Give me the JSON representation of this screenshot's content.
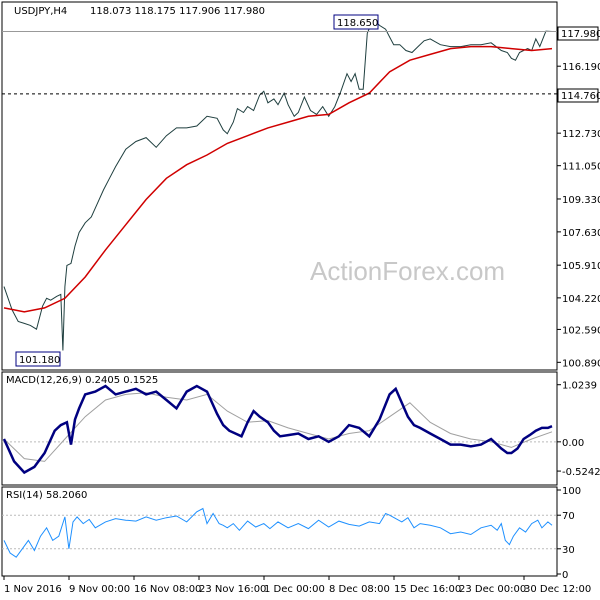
{
  "colors": {
    "candle": "#1f3f3f",
    "ma": "#d00000",
    "macd": "#000080",
    "signal": "#a0a0a0",
    "rsi": "#1e90ff",
    "level": "#000000",
    "grid": "#bbbbbb"
  },
  "watermark": "ActionForex.com",
  "chart_data": [
    {
      "type": "line",
      "panel": "price",
      "header": "USDJPY,H4",
      "ohlc_text": "118.073 118.175 117.906 117.980",
      "y_ticks": [
        "117.980",
        "116.190",
        "114.760",
        "112.730",
        "111.050",
        "109.330",
        "107.630",
        "105.910",
        "104.220",
        "102.590",
        "100.890"
      ],
      "y_tick_values": [
        117.98,
        116.19,
        114.76,
        112.73,
        111.05,
        109.33,
        107.63,
        105.91,
        104.22,
        102.59,
        100.89
      ],
      "ylim": [
        100.7,
        119.3
      ],
      "labels": {
        "high": "118.650",
        "low": "101.180",
        "current": "117.980",
        "level": "114.760"
      },
      "level_value": 114.76,
      "current_value": 117.98,
      "series": [
        {
          "name": "price",
          "x": [
            0,
            8,
            14,
            20,
            26,
            32,
            38,
            42,
            46,
            52,
            56,
            58,
            60,
            62,
            66,
            70,
            74,
            80,
            86,
            92,
            98,
            104,
            110,
            120,
            130,
            140,
            150,
            160,
            170,
            180,
            190,
            200,
            210,
            216,
            220,
            226,
            230,
            236,
            240,
            246,
            252,
            256,
            260,
            266,
            270,
            276,
            280,
            286,
            290,
            296,
            302,
            308,
            314,
            320,
            326,
            332,
            338,
            342,
            346,
            350,
            354,
            358,
            364,
            370,
            376,
            380,
            384,
            390,
            396,
            402,
            408,
            414,
            420,
            430,
            440,
            450,
            460,
            470,
            480,
            490,
            496,
            500,
            504,
            508,
            512,
            516,
            520,
            524,
            528,
            534,
            540
          ],
          "y": [
            104.8,
            103.6,
            103.0,
            102.9,
            102.8,
            102.6,
            103.8,
            104.2,
            104.1,
            104.3,
            104.4,
            101.5,
            104.8,
            105.9,
            106.0,
            106.9,
            107.6,
            108.1,
            108.4,
            109.1,
            109.8,
            110.4,
            111.0,
            111.9,
            112.3,
            112.5,
            112.0,
            112.6,
            113.0,
            113.0,
            113.1,
            113.6,
            113.5,
            112.9,
            112.7,
            113.3,
            114.0,
            113.8,
            114.1,
            113.9,
            114.7,
            114.9,
            114.3,
            114.5,
            114.2,
            114.8,
            114.2,
            113.6,
            113.8,
            114.6,
            113.9,
            113.7,
            114.1,
            113.6,
            114.1,
            114.9,
            115.8,
            115.4,
            115.8,
            115.0,
            115.0,
            117.9,
            118.6,
            118.3,
            118.1,
            117.7,
            117.3,
            117.3,
            117.0,
            116.9,
            117.2,
            117.5,
            117.6,
            117.3,
            117.2,
            117.2,
            117.3,
            117.3,
            117.4,
            117.0,
            116.9,
            116.6,
            116.5,
            116.9,
            117.0,
            117.1,
            117.0,
            117.6,
            117.2,
            118.0,
            117.98
          ]
        },
        {
          "name": "ma",
          "x": [
            0,
            20,
            40,
            60,
            80,
            100,
            120,
            140,
            160,
            180,
            200,
            220,
            240,
            260,
            280,
            300,
            320,
            340,
            360,
            380,
            400,
            420,
            440,
            460,
            480,
            500,
            520,
            540
          ],
          "y": [
            103.7,
            103.5,
            103.7,
            104.2,
            105.3,
            106.7,
            108.0,
            109.3,
            110.4,
            111.1,
            111.6,
            112.2,
            112.6,
            113.0,
            113.3,
            113.6,
            113.7,
            114.3,
            114.8,
            115.9,
            116.5,
            116.8,
            117.1,
            117.2,
            117.2,
            117.1,
            117.0,
            117.1
          ]
        }
      ]
    },
    {
      "type": "line",
      "panel": "macd",
      "header": "MACD(12,26,9) 0.2405 0.1525",
      "y_ticks": [
        "1.0239",
        "0.00",
        "-0.5242"
      ],
      "y_tick_values": [
        1.0239,
        0.0,
        -0.5242
      ],
      "ylim": [
        -0.72,
        1.18
      ],
      "series": [
        {
          "name": "MACD",
          "x": [
            0,
            10,
            20,
            30,
            40,
            50,
            56,
            62,
            66,
            70,
            74,
            80,
            90,
            100,
            110,
            120,
            130,
            140,
            150,
            160,
            170,
            180,
            190,
            200,
            210,
            216,
            222,
            228,
            234,
            240,
            246,
            252,
            260,
            266,
            272,
            280,
            290,
            300,
            310,
            320,
            330,
            340,
            350,
            360,
            370,
            380,
            386,
            392,
            398,
            404,
            410,
            420,
            430,
            440,
            450,
            460,
            470,
            480,
            490,
            496,
            500,
            506,
            512,
            518,
            524,
            530,
            536,
            540
          ],
          "y": [
            0.05,
            -0.35,
            -0.55,
            -0.45,
            -0.2,
            0.2,
            0.3,
            0.35,
            -0.05,
            0.4,
            0.6,
            0.85,
            0.9,
            1.0,
            0.85,
            0.9,
            0.95,
            0.85,
            0.9,
            0.75,
            0.6,
            0.9,
            1.0,
            0.9,
            0.5,
            0.3,
            0.2,
            0.15,
            0.1,
            0.35,
            0.55,
            0.45,
            0.35,
            0.2,
            0.1,
            0.12,
            0.15,
            0.05,
            0.1,
            0.0,
            0.1,
            0.3,
            0.25,
            0.1,
            0.4,
            0.85,
            0.95,
            0.7,
            0.45,
            0.3,
            0.25,
            0.15,
            0.05,
            -0.05,
            -0.05,
            -0.08,
            -0.05,
            0.05,
            -0.12,
            -0.2,
            -0.2,
            -0.12,
            0.05,
            0.12,
            0.2,
            0.25,
            0.25,
            0.28
          ]
        },
        {
          "name": "Signal",
          "x": [
            0,
            20,
            40,
            60,
            80,
            100,
            120,
            140,
            160,
            180,
            200,
            220,
            240,
            260,
            280,
            300,
            320,
            340,
            360,
            380,
            400,
            420,
            440,
            460,
            480,
            500,
            520,
            540
          ],
          "y": [
            0.05,
            -0.3,
            -0.35,
            0.05,
            0.45,
            0.75,
            0.85,
            0.88,
            0.8,
            0.75,
            0.85,
            0.55,
            0.35,
            0.38,
            0.25,
            0.15,
            0.05,
            0.15,
            0.2,
            0.45,
            0.7,
            0.35,
            0.15,
            0.05,
            0.0,
            -0.1,
            0.05,
            0.18
          ]
        }
      ]
    },
    {
      "type": "line",
      "panel": "rsi",
      "header": "RSI(14) 58.2060",
      "y_ticks": [
        "100",
        "70",
        "30",
        "0"
      ],
      "y_tick_values": [
        100,
        70,
        30,
        0
      ],
      "ylim": [
        0,
        100
      ],
      "series": [
        {
          "name": "RSI",
          "x": [
            0,
            6,
            12,
            18,
            24,
            30,
            36,
            42,
            48,
            54,
            60,
            64,
            68,
            72,
            78,
            84,
            90,
            100,
            110,
            120,
            130,
            140,
            150,
            160,
            170,
            180,
            190,
            196,
            200,
            206,
            212,
            216,
            220,
            226,
            232,
            240,
            248,
            256,
            262,
            270,
            280,
            290,
            300,
            310,
            320,
            330,
            340,
            350,
            360,
            370,
            376,
            380,
            386,
            392,
            398,
            404,
            410,
            420,
            430,
            440,
            450,
            460,
            470,
            480,
            486,
            490,
            494,
            498,
            502,
            508,
            514,
            520,
            526,
            530,
            536,
            540
          ],
          "y": [
            40,
            25,
            20,
            30,
            40,
            28,
            45,
            55,
            40,
            45,
            68,
            30,
            62,
            68,
            60,
            65,
            55,
            62,
            66,
            64,
            63,
            68,
            64,
            67,
            69,
            62,
            74,
            78,
            60,
            72,
            60,
            58,
            55,
            60,
            52,
            63,
            56,
            60,
            54,
            62,
            55,
            60,
            54,
            64,
            56,
            63,
            59,
            57,
            62,
            60,
            72,
            70,
            66,
            62,
            67,
            55,
            60,
            58,
            55,
            48,
            50,
            47,
            55,
            58,
            52,
            60,
            40,
            35,
            45,
            55,
            50,
            60,
            64,
            55,
            62,
            58
          ]
        },
        {
          "name": "level70",
          "x": [
            0,
            540
          ],
          "y": [
            70,
            70
          ]
        },
        {
          "name": "level30",
          "x": [
            0,
            540
          ],
          "y": [
            30,
            30
          ]
        }
      ]
    }
  ],
  "x_axis": {
    "labels": [
      "1 Nov 2016",
      "9 Nov 00:00",
      "16 Nov 08:00",
      "23 Nov 16:00",
      "1 Dec 00:00",
      "8 Dec 08:00",
      "15 Dec 16:00",
      "23 Dec 00:00",
      "30 Dec 12:00"
    ]
  }
}
